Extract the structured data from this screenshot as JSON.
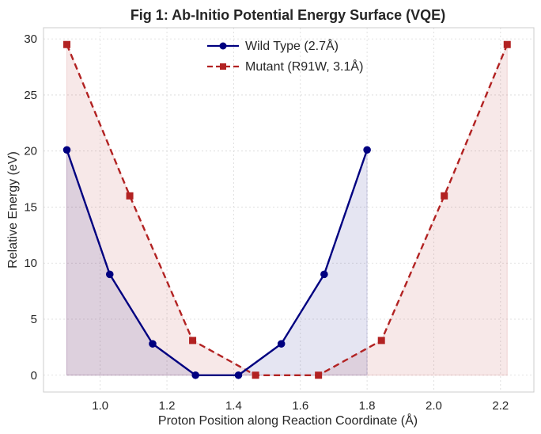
{
  "chart_data": {
    "type": "line",
    "title": "Fig 1: Ab-Initio Potential Energy Surface (VQE)",
    "xlabel": "Proton Position along Reaction Coordinate (Å)",
    "ylabel": "Relative Energy (eV)",
    "xlim": [
      0.83,
      2.3
    ],
    "ylim": [
      -1.5,
      31
    ],
    "xticks": [
      1.0,
      1.2,
      1.4,
      1.6,
      1.8,
      2.0,
      2.2
    ],
    "xtick_labels": [
      "1.0",
      "1.2",
      "1.4",
      "1.6",
      "1.8",
      "2.0",
      "2.2"
    ],
    "yticks": [
      0,
      5,
      10,
      15,
      20,
      25,
      30
    ],
    "ytick_labels": [
      "0",
      "5",
      "10",
      "15",
      "20",
      "25",
      "30"
    ],
    "grid": true,
    "legend_position": "top-center",
    "series": [
      {
        "name": "Wild Type (2.7Å)",
        "color": "#000080",
        "fill_color": "#000080",
        "line_style": "solid",
        "marker": "circle",
        "x": [
          0.9,
          1.0286,
          1.1571,
          1.2857,
          1.4143,
          1.5429,
          1.6714,
          1.8
        ],
        "y": [
          20.1,
          9.0,
          2.8,
          0.0,
          0.0,
          2.8,
          9.0,
          20.1
        ]
      },
      {
        "name": "Mutant (R91W, 3.1Å)",
        "color": "#b22222",
        "fill_color": "#b22222",
        "line_style": "dashed",
        "marker": "square",
        "x": [
          0.9,
          1.0886,
          1.2771,
          1.4657,
          1.6543,
          1.8429,
          2.0314,
          2.22
        ],
        "y": [
          29.5,
          16.0,
          3.1,
          0.0,
          0.0,
          3.1,
          16.0,
          29.5
        ]
      }
    ]
  }
}
